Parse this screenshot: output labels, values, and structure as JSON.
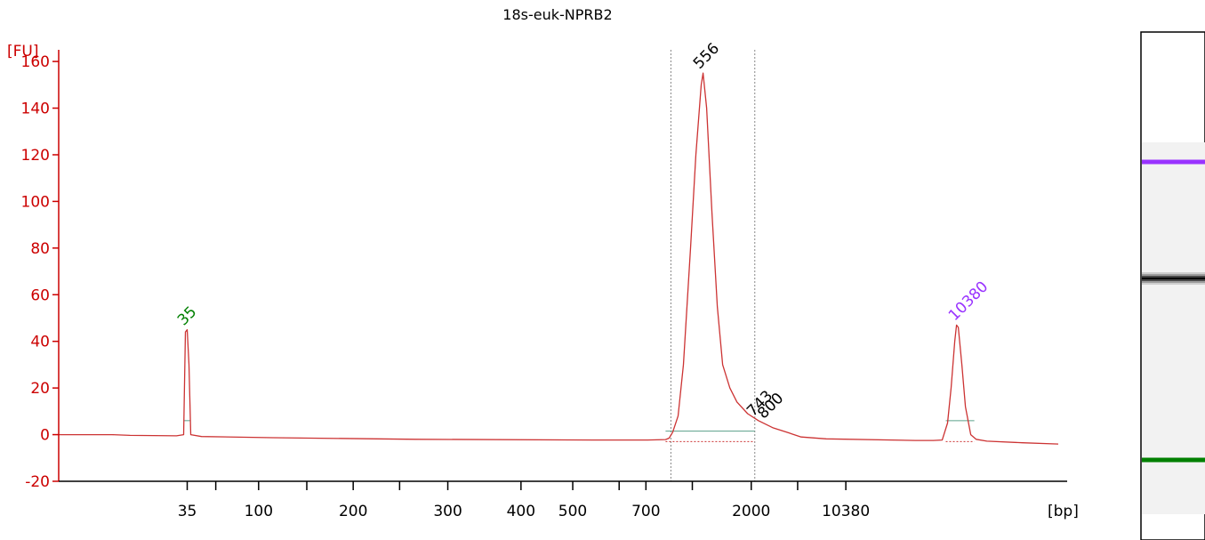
{
  "chart_data": {
    "type": "line",
    "title": "18s-euk-NPRB2",
    "ylabel": "[FU]",
    "xlabel": "[bp]",
    "ylim": [
      -20,
      165
    ],
    "yticks": [
      -20,
      0,
      20,
      40,
      60,
      80,
      100,
      120,
      140,
      160
    ],
    "xtick_labels": [
      "35",
      "",
      "100",
      "",
      "200",
      "",
      "300",
      "400",
      "500",
      "",
      "700",
      "",
      "2000",
      "",
      "10380"
    ],
    "grid": false,
    "series": [
      {
        "x_scale": "run position (sizes marked by tick labels)",
        "trace_color": "#cc3333",
        "points": [
          [
            0,
            0
          ],
          [
            30,
            0
          ],
          [
            40,
            -0.3
          ],
          [
            66,
            -0.5
          ],
          [
            70,
            0
          ],
          [
            71,
            44
          ],
          [
            72,
            45
          ],
          [
            73,
            30
          ],
          [
            74,
            0
          ],
          [
            80,
            -0.8
          ],
          [
            120,
            -1.3
          ],
          [
            200,
            -2
          ],
          [
            300,
            -2.3
          ],
          [
            330,
            -2.3
          ],
          [
            340,
            -2.1
          ],
          [
            342,
            -1.5
          ],
          [
            344,
            1
          ],
          [
            347,
            8
          ],
          [
            350,
            30
          ],
          [
            354,
            80
          ],
          [
            357,
            120
          ],
          [
            360,
            150
          ],
          [
            361,
            155
          ],
          [
            363,
            140
          ],
          [
            366,
            95
          ],
          [
            369,
            55
          ],
          [
            372,
            30
          ],
          [
            376,
            20
          ],
          [
            380,
            14
          ],
          [
            386,
            9
          ],
          [
            392,
            6
          ],
          [
            400,
            3
          ],
          [
            408,
            1
          ],
          [
            416,
            -1
          ],
          [
            430,
            -1.8
          ],
          [
            480,
            -2.5
          ],
          [
            490,
            -2.5
          ],
          [
            495,
            -2.3
          ],
          [
            498,
            5
          ],
          [
            500,
            20
          ],
          [
            502,
            40
          ],
          [
            503,
            47
          ],
          [
            504,
            46
          ],
          [
            506,
            30
          ],
          [
            508,
            12
          ],
          [
            511,
            0
          ],
          [
            514,
            -2
          ],
          [
            520,
            -2.8
          ],
          [
            540,
            -3.5
          ],
          [
            560,
            -4
          ]
        ]
      }
    ],
    "peaks": [
      {
        "label": "35",
        "x": 72,
        "y": 45,
        "color": "#008000"
      },
      {
        "label": "556",
        "x": 361,
        "y": 155,
        "color": "#000000"
      },
      {
        "label": "743",
        "x": 391,
        "y": 6,
        "color": "#000000"
      },
      {
        "label": "800",
        "x": 397,
        "y": 5,
        "color": "#000000"
      },
      {
        "label": "10380",
        "x": 504,
        "y": 47,
        "color": "#9933ff"
      }
    ],
    "region_markers": [
      343,
      390
    ],
    "gel_bands": [
      {
        "kind": "upper-marker",
        "color": "#9933ff"
      },
      {
        "kind": "sample",
        "color": "#000000"
      },
      {
        "kind": "lower-marker",
        "color": "#008000"
      }
    ]
  }
}
